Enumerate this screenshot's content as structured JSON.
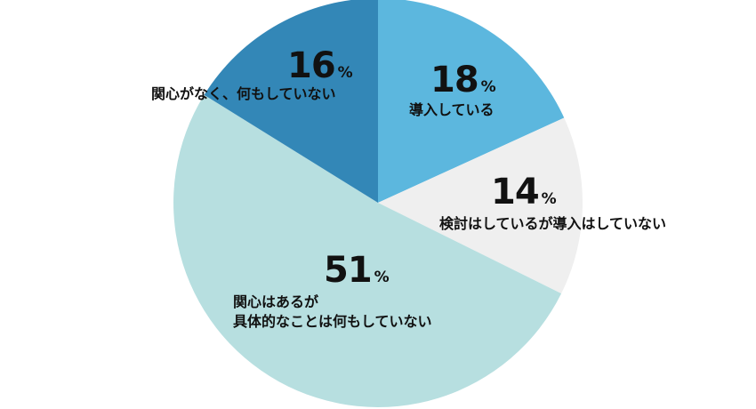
{
  "chart_data": {
    "type": "pie",
    "title": "",
    "unit": "%",
    "slices": [
      {
        "label": "導入している",
        "value": 18,
        "color": "#5cb7de"
      },
      {
        "label": "検討はしているが導入はしていない",
        "value": 14,
        "color": "#efefef"
      },
      {
        "label_lines": [
          "関心はあるが",
          "具体的なことは何もしていない"
        ],
        "value": 51,
        "color": "#b7dfe0"
      },
      {
        "label": "関心がなく、何もしていない",
        "value": 16,
        "color": "#3387b7"
      }
    ]
  }
}
